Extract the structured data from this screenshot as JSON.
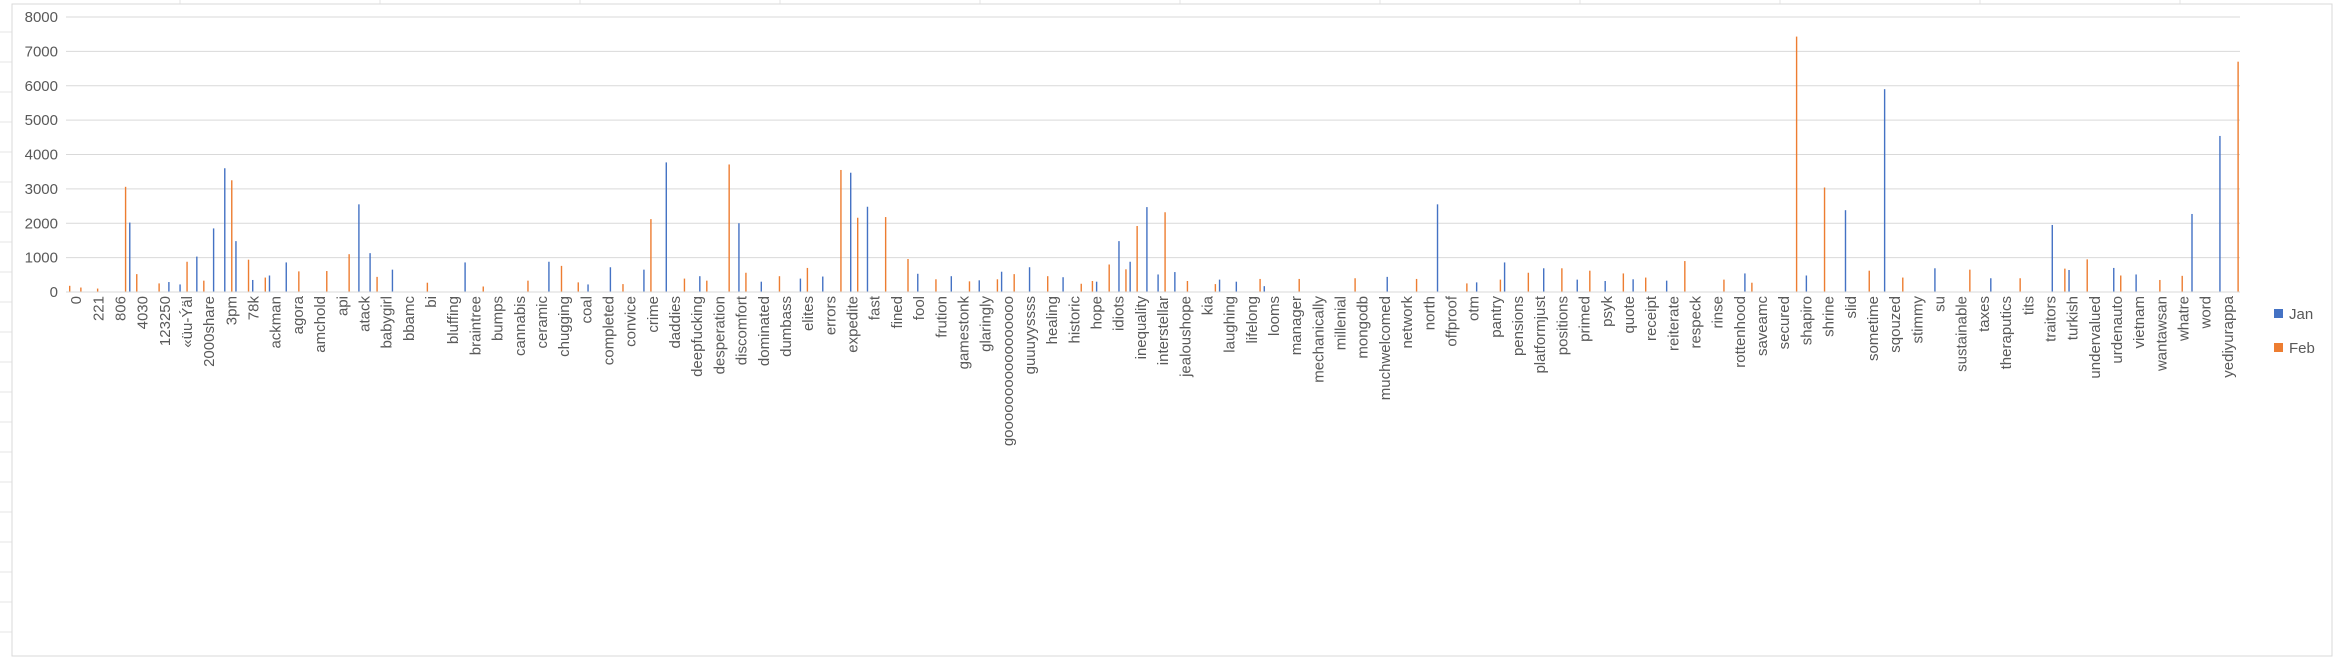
{
  "chart_data": {
    "type": "bar",
    "title": "",
    "xlabel": "",
    "ylabel": "",
    "ylim": [
      0,
      8000
    ],
    "y_ticks": [
      0,
      1000,
      2000,
      3000,
      4000,
      5000,
      6000,
      7000,
      8000
    ],
    "grid": true,
    "legend_position": "right",
    "colors": {
      "Jan": "#4472C4",
      "Feb": "#ED7D31"
    },
    "category_count": 1000,
    "x_tick_labels": [
      "0",
      "221",
      "806",
      "4030",
      "123250",
      "«üu-Ýäl",
      "2000share",
      "3pm",
      "78k",
      "ackman",
      "agora",
      "amchold",
      "api",
      "atack",
      "babygirl",
      "bbamc",
      "bi",
      "bluffing",
      "braintree",
      "bumps",
      "cannabis",
      "ceramic",
      "chugging",
      "coal",
      "completed",
      "convice",
      "crime",
      "daddies",
      "deepfucking",
      "desperation",
      "discomfort",
      "dominated",
      "dumbass",
      "elites",
      "errors",
      "expedite",
      "fast",
      "fined",
      "fool",
      "frution",
      "gamestonk",
      "glaringly",
      "gooooooooooooooooo",
      "guuuyyssss",
      "healing",
      "historic",
      "hope",
      "idiots",
      "inequality",
      "interstellar",
      "jealoushope",
      "kia",
      "laughing",
      "lifelong",
      "looms",
      "manager",
      "mechanically",
      "millenial",
      "mongodb",
      "muchwelcomed",
      "network",
      "north",
      "offproof",
      "otm",
      "pantry",
      "pensions",
      "platformjust",
      "positions",
      "primed",
      "psyk",
      "quote",
      "receipt",
      "reiterate",
      "respeck",
      "rinse",
      "rottenhood",
      "saveamc",
      "secured",
      "shapiro",
      "shrine",
      "slid",
      "sometime",
      "sqouzed",
      "stimmy",
      "su",
      "sustainable",
      "taxes",
      "theraputics",
      "tits",
      "traitors",
      "turkish",
      "undervalued",
      "urdenauto",
      "vietnam",
      "wantawsan",
      "whatre",
      "word",
      "yediyurappa"
    ],
    "series": [
      {
        "name": "Jan",
        "spikes": [
          [
            11,
            2020
          ],
          [
            18,
            290
          ],
          [
            20,
            220
          ],
          [
            23,
            1030
          ],
          [
            26,
            1850
          ],
          [
            28,
            3600
          ],
          [
            30,
            1480
          ],
          [
            33,
            350
          ],
          [
            36,
            480
          ],
          [
            39,
            860
          ],
          [
            52,
            2550
          ],
          [
            54,
            1130
          ],
          [
            58,
            650
          ],
          [
            71,
            860
          ],
          [
            86,
            880
          ],
          [
            93,
            220
          ],
          [
            97,
            720
          ],
          [
            103,
            650
          ],
          [
            107,
            3770
          ],
          [
            113,
            460
          ],
          [
            120,
            2000
          ],
          [
            124,
            300
          ],
          [
            131,
            390
          ],
          [
            135,
            450
          ],
          [
            140,
            3470
          ],
          [
            143,
            2480
          ],
          [
            152,
            530
          ],
          [
            158,
            460
          ],
          [
            163,
            340
          ],
          [
            167,
            590
          ],
          [
            172,
            720
          ],
          [
            178,
            430
          ],
          [
            184,
            300
          ],
          [
            188,
            1480
          ],
          [
            190,
            880
          ],
          [
            193,
            2470
          ],
          [
            195,
            510
          ],
          [
            198,
            580
          ],
          [
            206,
            360
          ],
          [
            209,
            300
          ],
          [
            214,
            170
          ],
          [
            236,
            440
          ],
          [
            245,
            2550
          ],
          [
            252,
            280
          ],
          [
            257,
            860
          ],
          [
            264,
            690
          ],
          [
            270,
            360
          ],
          [
            275,
            320
          ],
          [
            280,
            370
          ],
          [
            286,
            330
          ],
          [
            300,
            540
          ],
          [
            311,
            480
          ],
          [
            318,
            2380
          ],
          [
            325,
            5900
          ],
          [
            334,
            690
          ],
          [
            344,
            400
          ],
          [
            355,
            1950
          ],
          [
            358,
            640
          ],
          [
            366,
            700
          ],
          [
            370,
            510
          ],
          [
            380,
            2270
          ],
          [
            385,
            4540
          ]
        ]
      },
      {
        "name": "Feb",
        "spikes": [
          [
            0,
            180
          ],
          [
            2,
            130
          ],
          [
            5,
            100
          ],
          [
            10,
            3060
          ],
          [
            12,
            520
          ],
          [
            16,
            250
          ],
          [
            21,
            880
          ],
          [
            24,
            330
          ],
          [
            29,
            3250
          ],
          [
            32,
            940
          ],
          [
            35,
            420
          ],
          [
            41,
            600
          ],
          [
            46,
            610
          ],
          [
            50,
            1100
          ],
          [
            55,
            440
          ],
          [
            64,
            270
          ],
          [
            74,
            160
          ],
          [
            82,
            330
          ],
          [
            88,
            760
          ],
          [
            91,
            280
          ],
          [
            99,
            230
          ],
          [
            104,
            2120
          ],
          [
            110,
            390
          ],
          [
            114,
            330
          ],
          [
            118,
            3710
          ],
          [
            121,
            560
          ],
          [
            127,
            460
          ],
          [
            132,
            700
          ],
          [
            138,
            3550
          ],
          [
            141,
            2160
          ],
          [
            146,
            2180
          ],
          [
            150,
            960
          ],
          [
            155,
            370
          ],
          [
            161,
            310
          ],
          [
            166,
            370
          ],
          [
            169,
            520
          ],
          [
            175,
            460
          ],
          [
            181,
            240
          ],
          [
            183,
            320
          ],
          [
            186,
            800
          ],
          [
            189,
            660
          ],
          [
            191,
            1920
          ],
          [
            196,
            2320
          ],
          [
            200,
            320
          ],
          [
            205,
            230
          ],
          [
            213,
            380
          ],
          [
            220,
            380
          ],
          [
            230,
            400
          ],
          [
            241,
            380
          ],
          [
            250,
            250
          ],
          [
            256,
            360
          ],
          [
            261,
            560
          ],
          [
            267,
            690
          ],
          [
            272,
            620
          ],
          [
            278,
            540
          ],
          [
            282,
            420
          ],
          [
            289,
            900
          ],
          [
            296,
            360
          ],
          [
            301,
            270
          ],
          [
            309,
            7430
          ],
          [
            314,
            3040
          ],
          [
            322,
            620
          ],
          [
            328,
            420
          ],
          [
            340,
            650
          ],
          [
            349,
            400
          ],
          [
            357,
            680
          ],
          [
            361,
            950
          ],
          [
            367,
            480
          ],
          [
            374,
            350
          ],
          [
            378,
            470
          ],
          [
            388,
            6700
          ]
        ]
      }
    ]
  }
}
